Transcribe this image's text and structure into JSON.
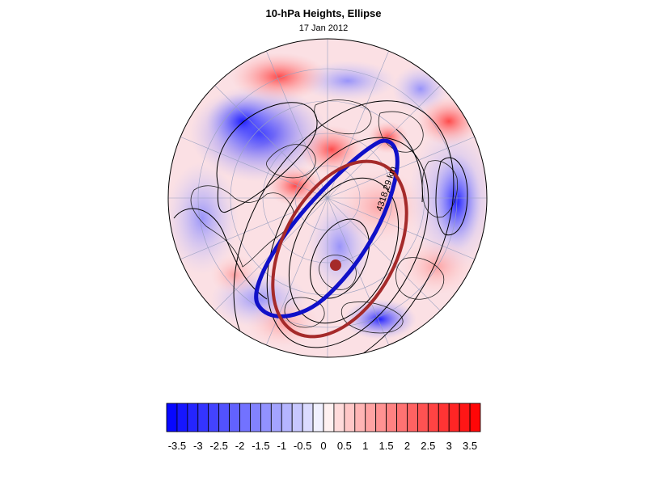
{
  "figure": {
    "title": "10-hPa Heights, Ellipse",
    "subtitle": "17 Jan 2012",
    "ellipse_label": "4318.29 km"
  },
  "colorbar": {
    "levels": [
      "-3.5",
      "-3",
      "-2.5",
      "-2",
      "-1.5",
      "-1",
      "-0.5",
      "0",
      "0.5",
      "1",
      "1.5",
      "2",
      "2.5",
      "3",
      "3.5"
    ],
    "range": [
      -3.75,
      3.75
    ],
    "negative_color": "#0000ff",
    "positive_color": "#ff0000",
    "neutral_color": "#ffffff"
  },
  "colors": {
    "ellipse_observed": "#1010c8",
    "ellipse_fitted": "#a52a2a",
    "center_marker": "#a52a2a",
    "contour": "#000000"
  }
}
